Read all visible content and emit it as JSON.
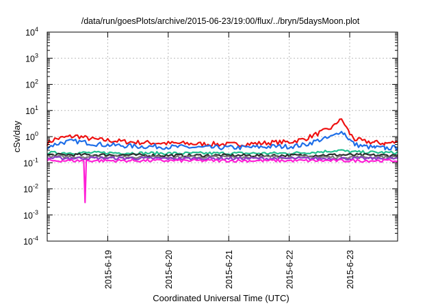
{
  "chart_data": {
    "type": "line",
    "title": "/data/run/goesPlots/archive/2015-06-23/19:00/flux/../bryn/5daysMoon.plot",
    "xlabel": "Coordinated Universal Time (UTC)",
    "ylabel": "cSv/day",
    "yscale": "log",
    "ylim": [
      0.0001,
      10000
    ],
    "yticks": [
      {
        "base": "10",
        "exp": "-4",
        "value": 0.0001
      },
      {
        "base": "10",
        "exp": "-3",
        "value": 0.001
      },
      {
        "base": "10",
        "exp": "-2",
        "value": 0.01
      },
      {
        "base": "10",
        "exp": "-1",
        "value": 0.1
      },
      {
        "base": "10",
        "exp": "0",
        "value": 1
      },
      {
        "base": "10",
        "exp": "1",
        "value": 10
      },
      {
        "base": "10",
        "exp": "2",
        "value": 100
      },
      {
        "base": "10",
        "exp": "3",
        "value": 1000
      },
      {
        "base": "10",
        "exp": "4",
        "value": 10000
      }
    ],
    "xlim": [
      "2015-06-18 00:00",
      "2015-06-23 19:00"
    ],
    "xticks": [
      "2015-6-19",
      "2015-6-20",
      "2015-6-21",
      "2015-6-22",
      "2015-6-23"
    ],
    "grid": true,
    "series": [
      {
        "color": "#ee1111",
        "values": [
          [
            "2015-06-18 00:00",
            0.55
          ],
          [
            "2015-06-18 03:00",
            0.8
          ],
          [
            "2015-06-18 06:00",
            0.9
          ],
          [
            "2015-06-18 09:00",
            1.0
          ],
          [
            "2015-06-18 12:00",
            1.05
          ],
          [
            "2015-06-18 15:00",
            0.9
          ],
          [
            "2015-06-18 18:00",
            0.8
          ],
          [
            "2015-06-18 21:00",
            0.75
          ],
          [
            "2015-06-19 00:00",
            0.72
          ],
          [
            "2015-06-19 06:00",
            0.65
          ],
          [
            "2015-06-19 12:00",
            0.6
          ],
          [
            "2015-06-19 18:00",
            0.58
          ],
          [
            "2015-06-20 00:00",
            0.55
          ],
          [
            "2015-06-20 06:00",
            0.55
          ],
          [
            "2015-06-20 12:00",
            0.52
          ],
          [
            "2015-06-20 18:00",
            0.52
          ],
          [
            "2015-06-21 00:00",
            0.5
          ],
          [
            "2015-06-21 06:00",
            0.52
          ],
          [
            "2015-06-21 12:00",
            0.55
          ],
          [
            "2015-06-21 18:00",
            0.6
          ],
          [
            "2015-06-22 00:00",
            0.62
          ],
          [
            "2015-06-22 06:00",
            0.8
          ],
          [
            "2015-06-22 12:00",
            1.4
          ],
          [
            "2015-06-22 15:00",
            1.8
          ],
          [
            "2015-06-22 18:00",
            2.6
          ],
          [
            "2015-06-22 20:00",
            4.8
          ],
          [
            "2015-06-22 22:00",
            3.0
          ],
          [
            "2015-06-23 00:00",
            1.3
          ],
          [
            "2015-06-23 02:00",
            0.8
          ],
          [
            "2015-06-23 06:00",
            0.65
          ],
          [
            "2015-06-23 10:00",
            0.6
          ],
          [
            "2015-06-23 14:00",
            0.55
          ],
          [
            "2015-06-23 19:00",
            0.62
          ]
        ]
      },
      {
        "color": "#1e6ee8",
        "values": [
          [
            "2015-06-18 00:00",
            0.4
          ],
          [
            "2015-06-18 03:00",
            0.5
          ],
          [
            "2015-06-18 06:00",
            0.6
          ],
          [
            "2015-06-18 09:00",
            0.65
          ],
          [
            "2015-06-18 12:00",
            0.65
          ],
          [
            "2015-06-18 15:00",
            0.6
          ],
          [
            "2015-06-18 18:00",
            0.55
          ],
          [
            "2015-06-18 21:00",
            0.5
          ],
          [
            "2015-06-19 00:00",
            0.48
          ],
          [
            "2015-06-19 06:00",
            0.45
          ],
          [
            "2015-06-19 12:00",
            0.42
          ],
          [
            "2015-06-19 18:00",
            0.42
          ],
          [
            "2015-06-20 00:00",
            0.4
          ],
          [
            "2015-06-20 06:00",
            0.4
          ],
          [
            "2015-06-20 12:00",
            0.38
          ],
          [
            "2015-06-20 18:00",
            0.38
          ],
          [
            "2015-06-21 00:00",
            0.38
          ],
          [
            "2015-06-21 06:00",
            0.38
          ],
          [
            "2015-06-21 12:00",
            0.4
          ],
          [
            "2015-06-21 18:00",
            0.42
          ],
          [
            "2015-06-22 00:00",
            0.42
          ],
          [
            "2015-06-22 06:00",
            0.48
          ],
          [
            "2015-06-22 12:00",
            0.75
          ],
          [
            "2015-06-22 15:00",
            0.85
          ],
          [
            "2015-06-22 18:00",
            1.1
          ],
          [
            "2015-06-22 20:00",
            1.6
          ],
          [
            "2015-06-22 22:00",
            1.3
          ],
          [
            "2015-06-23 00:00",
            0.75
          ],
          [
            "2015-06-23 02:00",
            0.5
          ],
          [
            "2015-06-23 06:00",
            0.42
          ],
          [
            "2015-06-23 10:00",
            0.38
          ],
          [
            "2015-06-23 14:00",
            0.36
          ],
          [
            "2015-06-23 19:00",
            0.38
          ]
        ]
      },
      {
        "color": "#22c090",
        "values": [
          [
            "2015-06-18 00:00",
            0.24
          ],
          [
            "2015-06-19 00:00",
            0.24
          ],
          [
            "2015-06-20 00:00",
            0.23
          ],
          [
            "2015-06-21 00:00",
            0.23
          ],
          [
            "2015-06-22 00:00",
            0.23
          ],
          [
            "2015-06-22 12:00",
            0.26
          ],
          [
            "2015-06-22 20:00",
            0.3
          ],
          [
            "2015-06-23 00:00",
            0.26
          ],
          [
            "2015-06-23 19:00",
            0.24
          ]
        ]
      },
      {
        "color": "#2a2a2a",
        "values": [
          [
            "2015-06-18 00:00",
            0.2
          ],
          [
            "2015-06-19 00:00",
            0.2
          ],
          [
            "2015-06-20 00:00",
            0.19
          ],
          [
            "2015-06-21 00:00",
            0.19
          ],
          [
            "2015-06-22 00:00",
            0.19
          ],
          [
            "2015-06-22 20:00",
            0.2
          ],
          [
            "2015-06-23 19:00",
            0.19
          ]
        ]
      },
      {
        "color": "#7a7a7a",
        "values": [
          [
            "2015-06-18 00:00",
            0.17
          ],
          [
            "2015-06-19 00:00",
            0.17
          ],
          [
            "2015-06-20 00:00",
            0.165
          ],
          [
            "2015-06-21 00:00",
            0.165
          ],
          [
            "2015-06-22 00:00",
            0.165
          ],
          [
            "2015-06-23 00:00",
            0.165
          ],
          [
            "2015-06-23 19:00",
            0.165
          ]
        ]
      },
      {
        "color": "#8a3cc8",
        "values": [
          [
            "2015-06-18 00:00",
            0.15
          ],
          [
            "2015-06-19 00:00",
            0.15
          ],
          [
            "2015-06-20 00:00",
            0.145
          ],
          [
            "2015-06-21 00:00",
            0.145
          ],
          [
            "2015-06-22 00:00",
            0.145
          ],
          [
            "2015-06-23 00:00",
            0.145
          ],
          [
            "2015-06-23 19:00",
            0.145
          ]
        ]
      },
      {
        "color": "#ff1fd6",
        "values": [
          [
            "2015-06-18 00:00",
            0.12
          ],
          [
            "2015-06-18 12:00",
            0.12
          ],
          [
            "2015-06-18 14:30",
            0.12
          ],
          [
            "2015-06-18 15:00",
            0.003
          ],
          [
            "2015-06-18 15:30",
            0.12
          ],
          [
            "2015-06-19 00:00",
            0.12
          ],
          [
            "2015-06-20 00:00",
            0.12
          ],
          [
            "2015-06-21 00:00",
            0.12
          ],
          [
            "2015-06-22 00:00",
            0.12
          ],
          [
            "2015-06-23 00:00",
            0.12
          ],
          [
            "2015-06-23 19:00",
            0.12
          ]
        ]
      }
    ]
  }
}
